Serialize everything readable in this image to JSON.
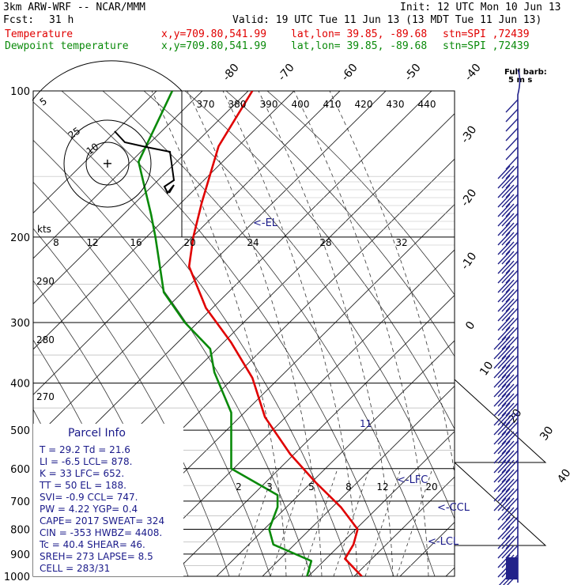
{
  "header": {
    "model": "3km ARW-WRF -- NCAR/MMM",
    "init": "Init: 12 UTC Mon 10 Jun 13",
    "fcst_label": "Fcst:",
    "fcst_value": "31 h",
    "valid": "Valid: 19 UTC Tue 11 Jun 13 (13 MDT Tue 11 Jun 13)",
    "temp_label": "Temperature",
    "dew_label": "Dewpoint temperature",
    "xy": "x,y=709.80,541.99",
    "latlon": "lat,lon= 39.85, -89.68",
    "stn": "stn=SPI ,72439",
    "colors": {
      "temperature": "#e00000",
      "dewpoint": "#0a8a0a",
      "barbs": "#22228a",
      "parcel": "#1a1a8a"
    }
  },
  "barb_legend": {
    "title": "Full barb:",
    "units": "5 m s"
  },
  "chart_data": {
    "type": "skew-t",
    "pressure_levels": [
      "100",
      "200",
      "300",
      "400",
      "500",
      "600",
      "700",
      "800",
      "900",
      "1000"
    ],
    "top_temp_labels": [
      "-80",
      "-70",
      "-60",
      "-50",
      "-40"
    ],
    "right_temp_labels": [
      "-30",
      "-20",
      "-10",
      "0",
      "10",
      "20",
      "30",
      "40"
    ],
    "theta_labels": [
      "370",
      "380",
      "390",
      "400",
      "410",
      "420",
      "430",
      "440"
    ],
    "theta_side_labels": [
      "290",
      "280",
      "270"
    ],
    "mixing_ratio_labels": [
      "2",
      "3",
      "5",
      "8",
      "12",
      "20"
    ],
    "hodograph": {
      "units": "kts",
      "ring_labels": [
        "5",
        "10",
        "25"
      ],
      "speed_labels": [
        "8",
        "12",
        "16",
        "20",
        "24",
        "28",
        "32"
      ]
    },
    "levels": {
      "el": "<-EL",
      "lfc": "<-LFC",
      "ccl": "<-CCL",
      "lcl": "<-LCL"
    },
    "parcel_top_label": "11",
    "temperature": [
      [
        100,
        0.52
      ],
      [
        130,
        0.44
      ],
      [
        170,
        0.4
      ],
      [
        200,
        0.38
      ],
      [
        230,
        0.37
      ],
      [
        280,
        0.41
      ],
      [
        330,
        0.47
      ],
      [
        390,
        0.52
      ],
      [
        470,
        0.55
      ],
      [
        560,
        0.61
      ],
      [
        640,
        0.67
      ],
      [
        720,
        0.73
      ],
      [
        800,
        0.77
      ],
      [
        860,
        0.76
      ],
      [
        920,
        0.74
      ],
      [
        1000,
        0.78
      ]
    ],
    "dewpoint": [
      [
        100,
        0.33
      ],
      [
        140,
        0.25
      ],
      [
        180,
        0.28
      ],
      [
        200,
        0.29
      ],
      [
        260,
        0.31
      ],
      [
        300,
        0.36
      ],
      [
        340,
        0.42
      ],
      [
        380,
        0.43
      ],
      [
        460,
        0.47
      ],
      [
        600,
        0.47
      ],
      [
        680,
        0.58
      ],
      [
        720,
        0.58
      ],
      [
        800,
        0.56
      ],
      [
        860,
        0.57
      ],
      [
        930,
        0.66
      ],
      [
        1000,
        0.65
      ]
    ]
  },
  "parcel_info": {
    "title": "Parcel Info",
    "rows": [
      "T  =   29.2  Td =  21.6",
      "LI =   -6.5  LCL=  878.",
      "K  =     33  LFC=  652.",
      "TT =     50  EL =  188.",
      "SVI=   -0.9  CCL=  747.",
      "PW =   4.22  YGP=   0.4",
      "CAPE=  2017  SWEAT=  324",
      "CIN =  -353  HWBZ= 4408.",
      "Tc =   40.4  SHEAR=  46.",
      "SREH=   273  LAPSE=  8.5",
      "CELL = 283/31"
    ]
  }
}
